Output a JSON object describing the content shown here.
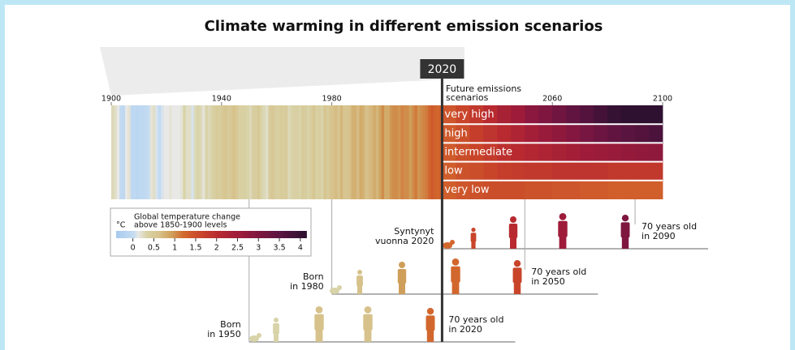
{
  "chart_data": {
    "type": "stripes",
    "title": "Climate warming in different emission scenarios",
    "xlim": [
      1900,
      2100
    ],
    "xticks": [
      1900,
      1940,
      1980,
      2060,
      2100
    ],
    "marker_year": 2020,
    "scenarios_label": [
      "Future emissions",
      "scenarios"
    ],
    "colorscale": [
      {
        "value": -0.4,
        "color": "#a8cbee"
      },
      {
        "value": 0,
        "color": "#c5dcf2"
      },
      {
        "value": 0.1,
        "color": "#e8e8e6"
      },
      {
        "value": 0.3,
        "color": "#d8d3a8"
      },
      {
        "value": 0.6,
        "color": "#d7c28c"
      },
      {
        "value": 0.9,
        "color": "#cf9f5a"
      },
      {
        "value": 1.2,
        "color": "#d2672d"
      },
      {
        "value": 1.6,
        "color": "#c9452a"
      },
      {
        "value": 2.0,
        "color": "#b82a30"
      },
      {
        "value": 2.5,
        "color": "#9e1c3a"
      },
      {
        "value": 3.0,
        "color": "#7e1640"
      },
      {
        "value": 3.5,
        "color": "#5a1440"
      },
      {
        "value": 4.1,
        "color": "#2e1030"
      }
    ],
    "history": {
      "years": [
        1900,
        1901,
        1902,
        1903,
        1904,
        1905,
        1906,
        1907,
        1908,
        1909,
        1910,
        1911,
        1912,
        1913,
        1914,
        1915,
        1916,
        1917,
        1918,
        1919,
        1920,
        1921,
        1922,
        1923,
        1924,
        1925,
        1926,
        1927,
        1928,
        1929,
        1930,
        1931,
        1932,
        1933,
        1934,
        1935,
        1936,
        1937,
        1938,
        1939,
        1940,
        1941,
        1942,
        1943,
        1944,
        1945,
        1946,
        1947,
        1948,
        1949,
        1950,
        1951,
        1952,
        1953,
        1954,
        1955,
        1956,
        1957,
        1958,
        1959,
        1960,
        1961,
        1962,
        1963,
        1964,
        1965,
        1966,
        1967,
        1968,
        1969,
        1970,
        1971,
        1972,
        1973,
        1974,
        1975,
        1976,
        1977,
        1978,
        1979,
        1980,
        1981,
        1982,
        1983,
        1984,
        1985,
        1986,
        1987,
        1988,
        1989,
        1990,
        1991,
        1992,
        1993,
        1994,
        1995,
        1996,
        1997,
        1998,
        1999,
        2000,
        2001,
        2002,
        2003,
        2004,
        2005,
        2006,
        2007,
        2008,
        2009,
        2010,
        2011,
        2012,
        2013,
        2014,
        2015,
        2016,
        2017,
        2018,
        2019,
        2020
      ],
      "values": [
        0.25,
        0.2,
        0.1,
        -0.05,
        -0.1,
        0.1,
        0.15,
        -0.1,
        -0.1,
        -0.15,
        -0.1,
        -0.1,
        -0.05,
        0.0,
        0.15,
        0.2,
        0.05,
        -0.05,
        0.05,
        0.1,
        0.1,
        0.15,
        0.1,
        0.1,
        0.1,
        0.15,
        0.3,
        0.2,
        0.2,
        0.05,
        0.25,
        0.3,
        0.25,
        0.15,
        0.3,
        0.25,
        0.3,
        0.4,
        0.45,
        0.4,
        0.5,
        0.55,
        0.45,
        0.5,
        0.6,
        0.5,
        0.35,
        0.35,
        0.35,
        0.3,
        0.25,
        0.4,
        0.4,
        0.5,
        0.3,
        0.25,
        0.2,
        0.45,
        0.5,
        0.4,
        0.35,
        0.45,
        0.4,
        0.45,
        0.25,
        0.3,
        0.35,
        0.35,
        0.3,
        0.45,
        0.4,
        0.3,
        0.4,
        0.55,
        0.35,
        0.4,
        0.3,
        0.55,
        0.45,
        0.55,
        0.6,
        0.65,
        0.55,
        0.7,
        0.55,
        0.55,
        0.6,
        0.75,
        0.75,
        0.65,
        0.8,
        0.75,
        0.6,
        0.65,
        0.7,
        0.8,
        0.7,
        0.85,
        1.0,
        0.8,
        0.8,
        0.95,
        1.0,
        1.0,
        0.95,
        1.05,
        1.0,
        1.0,
        0.9,
        1.0,
        1.1,
        0.95,
        1.0,
        1.05,
        1.1,
        1.25,
        1.35,
        1.25,
        1.2,
        1.3,
        1.3
      ]
    },
    "bins": [
      2020,
      2025,
      2030,
      2035,
      2040,
      2045,
      2050,
      2055,
      2060,
      2065,
      2070,
      2075,
      2080,
      2085,
      2090,
      2095,
      2100
    ],
    "series": [
      {
        "name": "very high",
        "values": [
          1.4,
          1.6,
          1.8,
          2.0,
          2.3,
          2.5,
          2.8,
          3.0,
          3.2,
          3.4,
          3.6,
          3.8,
          4.0,
          4.2,
          4.4,
          4.6
        ]
      },
      {
        "name": "high",
        "values": [
          1.35,
          1.5,
          1.7,
          1.85,
          2.0,
          2.2,
          2.4,
          2.6,
          2.75,
          2.9,
          3.1,
          3.25,
          3.4,
          3.5,
          3.6,
          3.7
        ]
      },
      {
        "name": "intermediate",
        "values": [
          1.35,
          1.5,
          1.6,
          1.75,
          1.9,
          2.0,
          2.1,
          2.2,
          2.3,
          2.4,
          2.5,
          2.55,
          2.6,
          2.65,
          2.7,
          2.75
        ]
      },
      {
        "name": "low",
        "values": [
          1.3,
          1.45,
          1.5,
          1.6,
          1.7,
          1.75,
          1.8,
          1.8,
          1.85,
          1.85,
          1.85,
          1.85,
          1.8,
          1.8,
          1.8,
          1.8
        ]
      },
      {
        "name": "very low",
        "values": [
          1.3,
          1.4,
          1.45,
          1.5,
          1.5,
          1.5,
          1.45,
          1.45,
          1.4,
          1.4,
          1.35,
          1.35,
          1.3,
          1.3,
          1.3,
          1.3
        ]
      }
    ],
    "legend": {
      "title": [
        "Global temperature change",
        "above 1850-1900 levels"
      ],
      "unit": "°C",
      "lim": [
        -0.4,
        4.1
      ],
      "ticks": [
        0,
        0.5,
        1,
        1.5,
        2,
        2.5,
        3,
        3.5,
        4
      ]
    },
    "generations": [
      {
        "label": [
          "Syntynyt",
          "vuonna 2020"
        ],
        "birth_year": 2020,
        "age_label": [
          "70 years old",
          "in 2090"
        ],
        "age_year": 2090
      },
      {
        "label": [
          "Born",
          "in 1980"
        ],
        "birth_year": 1980,
        "age_label": [
          "70 years old",
          "in 2050"
        ],
        "age_year": 2050
      },
      {
        "label": [
          "Born",
          "in 1950"
        ],
        "birth_year": 1950,
        "age_label": [
          "70 years old",
          "in 2020"
        ],
        "age_year": 2020
      }
    ]
  }
}
